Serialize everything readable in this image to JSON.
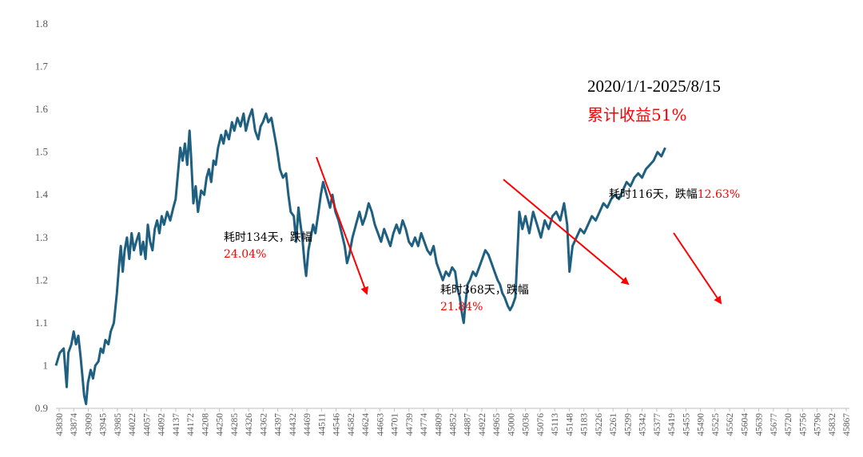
{
  "chart_data": {
    "type": "line",
    "ylim": [
      0.9,
      1.8
    ],
    "yticks": [
      "0.9",
      "1",
      "1.1",
      "1.2",
      "1.3",
      "1.4",
      "1.5",
      "1.6",
      "1.7",
      "1.8"
    ],
    "xlim": [
      43830,
      45885
    ],
    "x_tick_labels": [
      "43830",
      "43874",
      "43909",
      "43945",
      "43985",
      "44022",
      "44057",
      "44092",
      "44137",
      "44172",
      "44208",
      "44250",
      "44285",
      "44326",
      "44362",
      "44397",
      "44432",
      "44469",
      "44511",
      "44546",
      "44582",
      "44624",
      "44663",
      "44701",
      "44739",
      "44774",
      "44809",
      "44852",
      "44887",
      "44922",
      "44965",
      "45000",
      "45036",
      "45076",
      "45113",
      "45148",
      "45183",
      "45226",
      "45261",
      "45299",
      "45342",
      "45377",
      "45419",
      "45455",
      "45490",
      "45525",
      "45562",
      "45604",
      "45639",
      "45677",
      "45720",
      "45756",
      "45796",
      "45832",
      "45867"
    ],
    "series": [
      {
        "color": "#1f5f80",
        "points": [
          [
            43830,
            1.0
          ],
          [
            43840,
            1.03
          ],
          [
            43850,
            1.04
          ],
          [
            43858,
            0.95
          ],
          [
            43862,
            1.03
          ],
          [
            43870,
            1.05
          ],
          [
            43876,
            1.08
          ],
          [
            43882,
            1.05
          ],
          [
            43888,
            1.07
          ],
          [
            43894,
            1.02
          ],
          [
            43898,
            0.98
          ],
          [
            43903,
            0.93
          ],
          [
            43908,
            0.91
          ],
          [
            43913,
            0.96
          ],
          [
            43920,
            0.99
          ],
          [
            43926,
            0.97
          ],
          [
            43932,
            1.0
          ],
          [
            43940,
            1.01
          ],
          [
            43946,
            1.04
          ],
          [
            43952,
            1.03
          ],
          [
            43958,
            1.06
          ],
          [
            43966,
            1.05
          ],
          [
            43972,
            1.08
          ],
          [
            43980,
            1.1
          ],
          [
            43988,
            1.17
          ],
          [
            43994,
            1.24
          ],
          [
            43998,
            1.28
          ],
          [
            44003,
            1.22
          ],
          [
            44008,
            1.27
          ],
          [
            44014,
            1.3
          ],
          [
            44020,
            1.25
          ],
          [
            44026,
            1.31
          ],
          [
            44032,
            1.27
          ],
          [
            44038,
            1.29
          ],
          [
            44045,
            1.31
          ],
          [
            44050,
            1.26
          ],
          [
            44056,
            1.29
          ],
          [
            44062,
            1.25
          ],
          [
            44068,
            1.33
          ],
          [
            44074,
            1.29
          ],
          [
            44080,
            1.27
          ],
          [
            44086,
            1.32
          ],
          [
            44092,
            1.34
          ],
          [
            44098,
            1.31
          ],
          [
            44104,
            1.35
          ],
          [
            44110,
            1.33
          ],
          [
            44118,
            1.36
          ],
          [
            44126,
            1.34
          ],
          [
            44134,
            1.37
          ],
          [
            44140,
            1.39
          ],
          [
            44146,
            1.45
          ],
          [
            44152,
            1.51
          ],
          [
            44158,
            1.48
          ],
          [
            44164,
            1.52
          ],
          [
            44170,
            1.47
          ],
          [
            44176,
            1.55
          ],
          [
            44180,
            1.49
          ],
          [
            44186,
            1.38
          ],
          [
            44192,
            1.42
          ],
          [
            44198,
            1.36
          ],
          [
            44206,
            1.41
          ],
          [
            44214,
            1.4
          ],
          [
            44220,
            1.44
          ],
          [
            44226,
            1.46
          ],
          [
            44232,
            1.43
          ],
          [
            44238,
            1.48
          ],
          [
            44244,
            1.47
          ],
          [
            44250,
            1.51
          ],
          [
            44258,
            1.54
          ],
          [
            44264,
            1.52
          ],
          [
            44270,
            1.55
          ],
          [
            44278,
            1.53
          ],
          [
            44286,
            1.57
          ],
          [
            44292,
            1.55
          ],
          [
            44300,
            1.58
          ],
          [
            44308,
            1.56
          ],
          [
            44316,
            1.59
          ],
          [
            44322,
            1.55
          ],
          [
            44330,
            1.58
          ],
          [
            44338,
            1.6
          ],
          [
            44346,
            1.55
          ],
          [
            44354,
            1.53
          ],
          [
            44360,
            1.56
          ],
          [
            44366,
            1.57
          ],
          [
            44374,
            1.59
          ],
          [
            44380,
            1.57
          ],
          [
            44388,
            1.58
          ],
          [
            44396,
            1.54
          ],
          [
            44402,
            1.51
          ],
          [
            44410,
            1.46
          ],
          [
            44418,
            1.44
          ],
          [
            44426,
            1.45
          ],
          [
            44432,
            1.4
          ],
          [
            44438,
            1.36
          ],
          [
            44446,
            1.35
          ],
          [
            44452,
            1.29
          ],
          [
            44458,
            1.37
          ],
          [
            44462,
            1.34
          ],
          [
            44468,
            1.3
          ],
          [
            44474,
            1.24
          ],
          [
            44478,
            1.21
          ],
          [
            44484,
            1.27
          ],
          [
            44490,
            1.3
          ],
          [
            44496,
            1.33
          ],
          [
            44502,
            1.31
          ],
          [
            44510,
            1.36
          ],
          [
            44516,
            1.4
          ],
          [
            44522,
            1.43
          ],
          [
            44528,
            1.41
          ],
          [
            44534,
            1.39
          ],
          [
            44540,
            1.37
          ],
          [
            44546,
            1.4
          ],
          [
            44554,
            1.36
          ],
          [
            44562,
            1.34
          ],
          [
            44570,
            1.31
          ],
          [
            44578,
            1.28
          ],
          [
            44584,
            1.24
          ],
          [
            44590,
            1.26
          ],
          [
            44598,
            1.3
          ],
          [
            44604,
            1.32
          ],
          [
            44610,
            1.34
          ],
          [
            44616,
            1.36
          ],
          [
            44624,
            1.33
          ],
          [
            44632,
            1.35
          ],
          [
            44640,
            1.38
          ],
          [
            44648,
            1.36
          ],
          [
            44656,
            1.33
          ],
          [
            44664,
            1.31
          ],
          [
            44672,
            1.29
          ],
          [
            44680,
            1.32
          ],
          [
            44688,
            1.3
          ],
          [
            44696,
            1.28
          ],
          [
            44704,
            1.31
          ],
          [
            44712,
            1.33
          ],
          [
            44720,
            1.31
          ],
          [
            44728,
            1.34
          ],
          [
            44736,
            1.32
          ],
          [
            44744,
            1.29
          ],
          [
            44752,
            1.28
          ],
          [
            44760,
            1.3
          ],
          [
            44768,
            1.28
          ],
          [
            44776,
            1.31
          ],
          [
            44784,
            1.29
          ],
          [
            44792,
            1.27
          ],
          [
            44800,
            1.26
          ],
          [
            44808,
            1.28
          ],
          [
            44816,
            1.24
          ],
          [
            44824,
            1.22
          ],
          [
            44832,
            1.2
          ],
          [
            44840,
            1.22
          ],
          [
            44848,
            1.21
          ],
          [
            44856,
            1.23
          ],
          [
            44864,
            1.22
          ],
          [
            44870,
            1.18
          ],
          [
            44876,
            1.16
          ],
          [
            44882,
            1.12
          ],
          [
            44886,
            1.1
          ],
          [
            44890,
            1.14
          ],
          [
            44896,
            1.19
          ],
          [
            44902,
            1.2
          ],
          [
            44910,
            1.22
          ],
          [
            44918,
            1.21
          ],
          [
            44926,
            1.23
          ],
          [
            44934,
            1.25
          ],
          [
            44942,
            1.27
          ],
          [
            44950,
            1.26
          ],
          [
            44958,
            1.24
          ],
          [
            44966,
            1.22
          ],
          [
            44974,
            1.2
          ],
          [
            44980,
            1.19
          ],
          [
            44986,
            1.17
          ],
          [
            44992,
            1.16
          ],
          [
            45000,
            1.14
          ],
          [
            45006,
            1.13
          ],
          [
            45012,
            1.14
          ],
          [
            45020,
            1.16
          ],
          [
            45030,
            1.36
          ],
          [
            45038,
            1.32
          ],
          [
            45046,
            1.35
          ],
          [
            45056,
            1.31
          ],
          [
            45066,
            1.36
          ],
          [
            45076,
            1.33
          ],
          [
            45086,
            1.3
          ],
          [
            45096,
            1.34
          ],
          [
            45106,
            1.32
          ],
          [
            45116,
            1.35
          ],
          [
            45126,
            1.36
          ],
          [
            45136,
            1.34
          ],
          [
            45146,
            1.38
          ],
          [
            45154,
            1.33
          ],
          [
            45160,
            1.22
          ],
          [
            45168,
            1.28
          ],
          [
            45178,
            1.3
          ],
          [
            45188,
            1.32
          ],
          [
            45198,
            1.31
          ],
          [
            45208,
            1.33
          ],
          [
            45218,
            1.35
          ],
          [
            45228,
            1.34
          ],
          [
            45238,
            1.36
          ],
          [
            45248,
            1.38
          ],
          [
            45258,
            1.37
          ],
          [
            45268,
            1.39
          ],
          [
            45278,
            1.4
          ],
          [
            45288,
            1.39
          ],
          [
            45298,
            1.41
          ],
          [
            45308,
            1.43
          ],
          [
            45318,
            1.42
          ],
          [
            45328,
            1.44
          ],
          [
            45338,
            1.45
          ],
          [
            45348,
            1.44
          ],
          [
            45358,
            1.46
          ],
          [
            45368,
            1.47
          ],
          [
            45378,
            1.48
          ],
          [
            45388,
            1.5
          ],
          [
            45398,
            1.49
          ],
          [
            45408,
            1.51
          ]
        ]
      }
    ],
    "annotations": [
      {
        "text": "耗时134天，跌幅",
        "value": "24.04%"
      },
      {
        "text": "耗时368天，跌幅",
        "value": "21.84%"
      },
      {
        "text": "耗时116天，跌幅",
        "value": "12.63%"
      }
    ],
    "title_range": "2020/1/1-2025/8/15",
    "title_return": "累计收益51%"
  }
}
